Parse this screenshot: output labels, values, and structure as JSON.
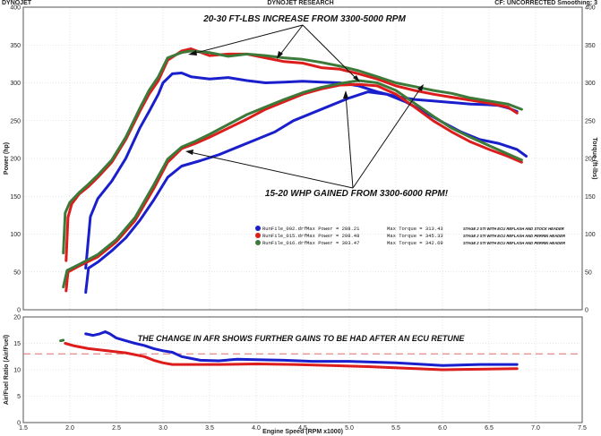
{
  "header": {
    "left": "DYNOJET",
    "center": "DYNOJET RESEARCH",
    "right": "CF: UNCORRECTED  Smoothing: 3"
  },
  "chart_data": [
    {
      "type": "line",
      "title": "",
      "xlabel": "",
      "ylabel_left": "Power (hp)",
      "ylabel_right": "Torque (ft-lbs)",
      "xlim": [
        1.5,
        7.5
      ],
      "ylim": [
        0,
        400
      ],
      "grid": true,
      "yticks": [
        0,
        50,
        100,
        150,
        200,
        250,
        300,
        350,
        400
      ],
      "annotations": [
        "20-30 FT-LBS INCREASE FROM 3300-5000 RPM",
        "15-20 WHP GAINED FROM 3300-6000 RPM!"
      ],
      "legend": [
        {
          "file": "RunFile_002.drf",
          "max_power": "Max Power = 288.21",
          "max_torque": "Max Torque = 313.43",
          "note": "STAGE 2 STI WITH ECU REFLASH AND STOCK HEADER",
          "color": "#1a1fcc"
        },
        {
          "file": "RunFile_015.drf",
          "max_power": "Max Power = 298.48",
          "max_torque": "Max Torque = 345.33",
          "note": "STAGE 2 STI WITH ECU REFLASH AND PERRIN HEADER",
          "color": "#dd1c1c"
        },
        {
          "file": "RunFile_016.drf",
          "max_power": "Max Power = 303.47",
          "max_torque": "Max Torque = 342.69",
          "note": "STAGE 2 STI WITH ECU REFLASH AND PERRIN HEADER",
          "color": "#3d7a3a"
        }
      ],
      "series": [
        {
          "name": "RunFile_002.drf torque",
          "color": "#1a1fcc",
          "x": [
            2.17,
            2.22,
            2.3,
            2.45,
            2.6,
            2.75,
            2.85,
            2.95,
            3.0,
            3.1,
            3.2,
            3.3,
            3.5,
            3.7,
            3.9,
            4.1,
            4.3,
            4.5,
            4.7,
            4.9,
            5.1,
            5.3,
            5.5,
            5.7,
            5.9,
            6.1,
            6.3,
            6.5,
            6.6,
            6.7,
            6.8
          ],
          "y": [
            55,
            123,
            147,
            170,
            200,
            240,
            262,
            285,
            300,
            312,
            313,
            308,
            305,
            307,
            303,
            300,
            301,
            302,
            301,
            300,
            296,
            288,
            282,
            278,
            276,
            274,
            272,
            271,
            270,
            267,
            262
          ]
        },
        {
          "name": "RunFile_015.drf torque",
          "color": "#dd1c1c",
          "x": [
            1.96,
            1.98,
            2.02,
            2.1,
            2.2,
            2.3,
            2.45,
            2.6,
            2.75,
            2.85,
            2.95,
            3.05,
            3.2,
            3.3,
            3.5,
            3.7,
            3.9,
            4.1,
            4.3,
            4.5,
            4.7,
            4.9,
            5.1,
            5.3,
            5.5,
            5.7,
            5.9,
            6.1,
            6.3,
            6.5,
            6.7,
            6.8
          ],
          "y": [
            65,
            122,
            140,
            153,
            163,
            175,
            195,
            225,
            262,
            285,
            303,
            330,
            342,
            345,
            336,
            338,
            338,
            333,
            328,
            326,
            320,
            318,
            312,
            305,
            296,
            290,
            285,
            281,
            277,
            273,
            268,
            260
          ]
        },
        {
          "name": "RunFile_016.drf torque",
          "color": "#3d7a3a",
          "x": [
            1.93,
            1.95,
            2.0,
            2.1,
            2.2,
            2.3,
            2.45,
            2.6,
            2.75,
            2.85,
            2.95,
            3.05,
            3.2,
            3.3,
            3.5,
            3.7,
            3.9,
            4.1,
            4.3,
            4.5,
            4.7,
            4.9,
            5.1,
            5.3,
            5.5,
            5.7,
            5.9,
            6.1,
            6.3,
            6.5,
            6.7,
            6.85
          ],
          "y": [
            75,
            128,
            142,
            155,
            166,
            178,
            198,
            228,
            266,
            290,
            308,
            333,
            340,
            342,
            340,
            335,
            338,
            336,
            333,
            331,
            327,
            322,
            316,
            308,
            300,
            295,
            290,
            286,
            280,
            276,
            272,
            265
          ]
        },
        {
          "name": "RunFile_002.drf power",
          "color": "#1a1fcc",
          "x": [
            2.17,
            2.2,
            2.3,
            2.45,
            2.6,
            2.75,
            2.9,
            3.05,
            3.2,
            3.4,
            3.6,
            3.8,
            4.0,
            4.2,
            4.4,
            4.6,
            4.8,
            5.0,
            5.2,
            5.4,
            5.6,
            5.8,
            6.0,
            6.2,
            6.4,
            6.6,
            6.8,
            6.9
          ],
          "y": [
            23,
            55,
            63,
            78,
            95,
            118,
            145,
            175,
            190,
            197,
            205,
            215,
            225,
            235,
            250,
            260,
            270,
            280,
            288,
            285,
            275,
            262,
            248,
            235,
            225,
            220,
            212,
            203
          ]
        },
        {
          "name": "RunFile_015.drf power",
          "color": "#dd1c1c",
          "x": [
            1.96,
            1.98,
            2.1,
            2.3,
            2.5,
            2.7,
            2.9,
            3.05,
            3.2,
            3.35,
            3.5,
            3.7,
            3.9,
            4.1,
            4.3,
            4.5,
            4.7,
            4.9,
            5.1,
            5.3,
            5.5,
            5.7,
            5.9,
            6.1,
            6.3,
            6.5,
            6.7,
            6.85
          ],
          "y": [
            25,
            50,
            58,
            70,
            90,
            118,
            160,
            195,
            213,
            220,
            228,
            240,
            252,
            265,
            275,
            285,
            292,
            297,
            298,
            296,
            285,
            268,
            250,
            235,
            222,
            212,
            203,
            195
          ]
        },
        {
          "name": "RunFile_016.drf power",
          "color": "#3d7a3a",
          "x": [
            1.93,
            1.97,
            2.1,
            2.3,
            2.5,
            2.7,
            2.9,
            3.05,
            3.2,
            3.35,
            3.5,
            3.7,
            3.9,
            4.1,
            4.3,
            4.5,
            4.7,
            4.9,
            5.1,
            5.3,
            5.5,
            5.7,
            5.9,
            6.1,
            6.3,
            6.5,
            6.7,
            6.85
          ],
          "y": [
            30,
            52,
            60,
            73,
            93,
            122,
            165,
            199,
            215,
            223,
            232,
            245,
            258,
            268,
            278,
            287,
            294,
            299,
            303,
            300,
            290,
            273,
            256,
            240,
            228,
            217,
            206,
            198
          ]
        }
      ]
    },
    {
      "type": "line",
      "title": "",
      "xlabel": "Engine Speed (RPM x1000)",
      "ylabel": "Air/Fuel Ratio (Air/Fuel)",
      "xlim": [
        1.5,
        7.5
      ],
      "ylim": [
        0,
        20
      ],
      "grid": true,
      "xticks": [
        1.5,
        2.0,
        2.5,
        3.0,
        3.5,
        4.0,
        4.5,
        5.0,
        5.5,
        6.0,
        6.5,
        7.0,
        7.5
      ],
      "yticks": [
        0,
        5,
        10,
        15,
        20
      ],
      "reference_line": 13,
      "annotation": "THE CHANGE IN AFR SHOWS FURTHER GAINS TO BE HAD AFTER AN ECU RETUNE",
      "series": [
        {
          "name": "RunFile_002.drf AFR",
          "color": "#1a1fcc",
          "x": [
            2.17,
            2.25,
            2.32,
            2.38,
            2.43,
            2.5,
            2.6,
            2.7,
            2.8,
            2.9,
            3.0,
            3.1,
            3.2,
            3.4,
            3.6,
            3.8,
            4.0,
            4.3,
            4.6,
            5.0,
            5.5,
            6.0,
            6.4,
            6.8
          ],
          "y": [
            16.8,
            16.5,
            16.8,
            17.2,
            16.8,
            16.0,
            15.5,
            15.0,
            14.6,
            14.0,
            13.6,
            13.3,
            12.5,
            11.8,
            11.7,
            12.0,
            11.9,
            11.8,
            11.6,
            11.6,
            11.3,
            10.8,
            11.0,
            11.0
          ]
        },
        {
          "name": "RunFile_015.drf AFR",
          "color": "#dd1c1c",
          "x": [
            1.95,
            2.05,
            2.2,
            2.4,
            2.6,
            2.8,
            2.9,
            3.0,
            3.1,
            3.3,
            3.6,
            4.0,
            4.4,
            4.8,
            5.2,
            5.6,
            6.0,
            6.4,
            6.8
          ],
          "y": [
            15.0,
            14.5,
            14.0,
            13.6,
            13.2,
            12.5,
            11.8,
            11.3,
            11.0,
            11.0,
            11.0,
            11.1,
            11.0,
            10.8,
            10.6,
            10.3,
            10.0,
            10.1,
            10.2
          ]
        },
        {
          "name": "RunFile_016.drf AFR",
          "color": "#3d7a3a",
          "x": [
            1.9,
            1.93
          ],
          "y": [
            15.5,
            15.6
          ]
        }
      ]
    }
  ]
}
